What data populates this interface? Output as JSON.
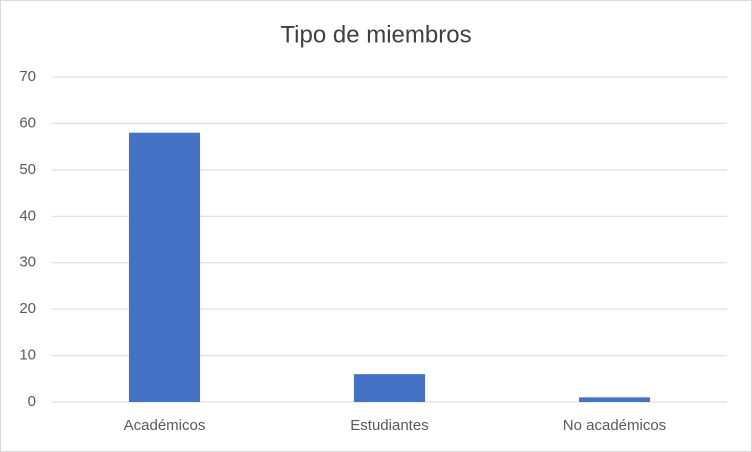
{
  "chart_data": {
    "type": "bar",
    "title": "Tipo de miembros",
    "categories": [
      "Académicos",
      "Estudiantes",
      "No académicos"
    ],
    "values": [
      58,
      6,
      1
    ],
    "color": "#4472c4",
    "ylim": [
      0,
      70
    ],
    "yticks": [
      0,
      10,
      20,
      30,
      40,
      50,
      60,
      70
    ],
    "grid": true
  }
}
